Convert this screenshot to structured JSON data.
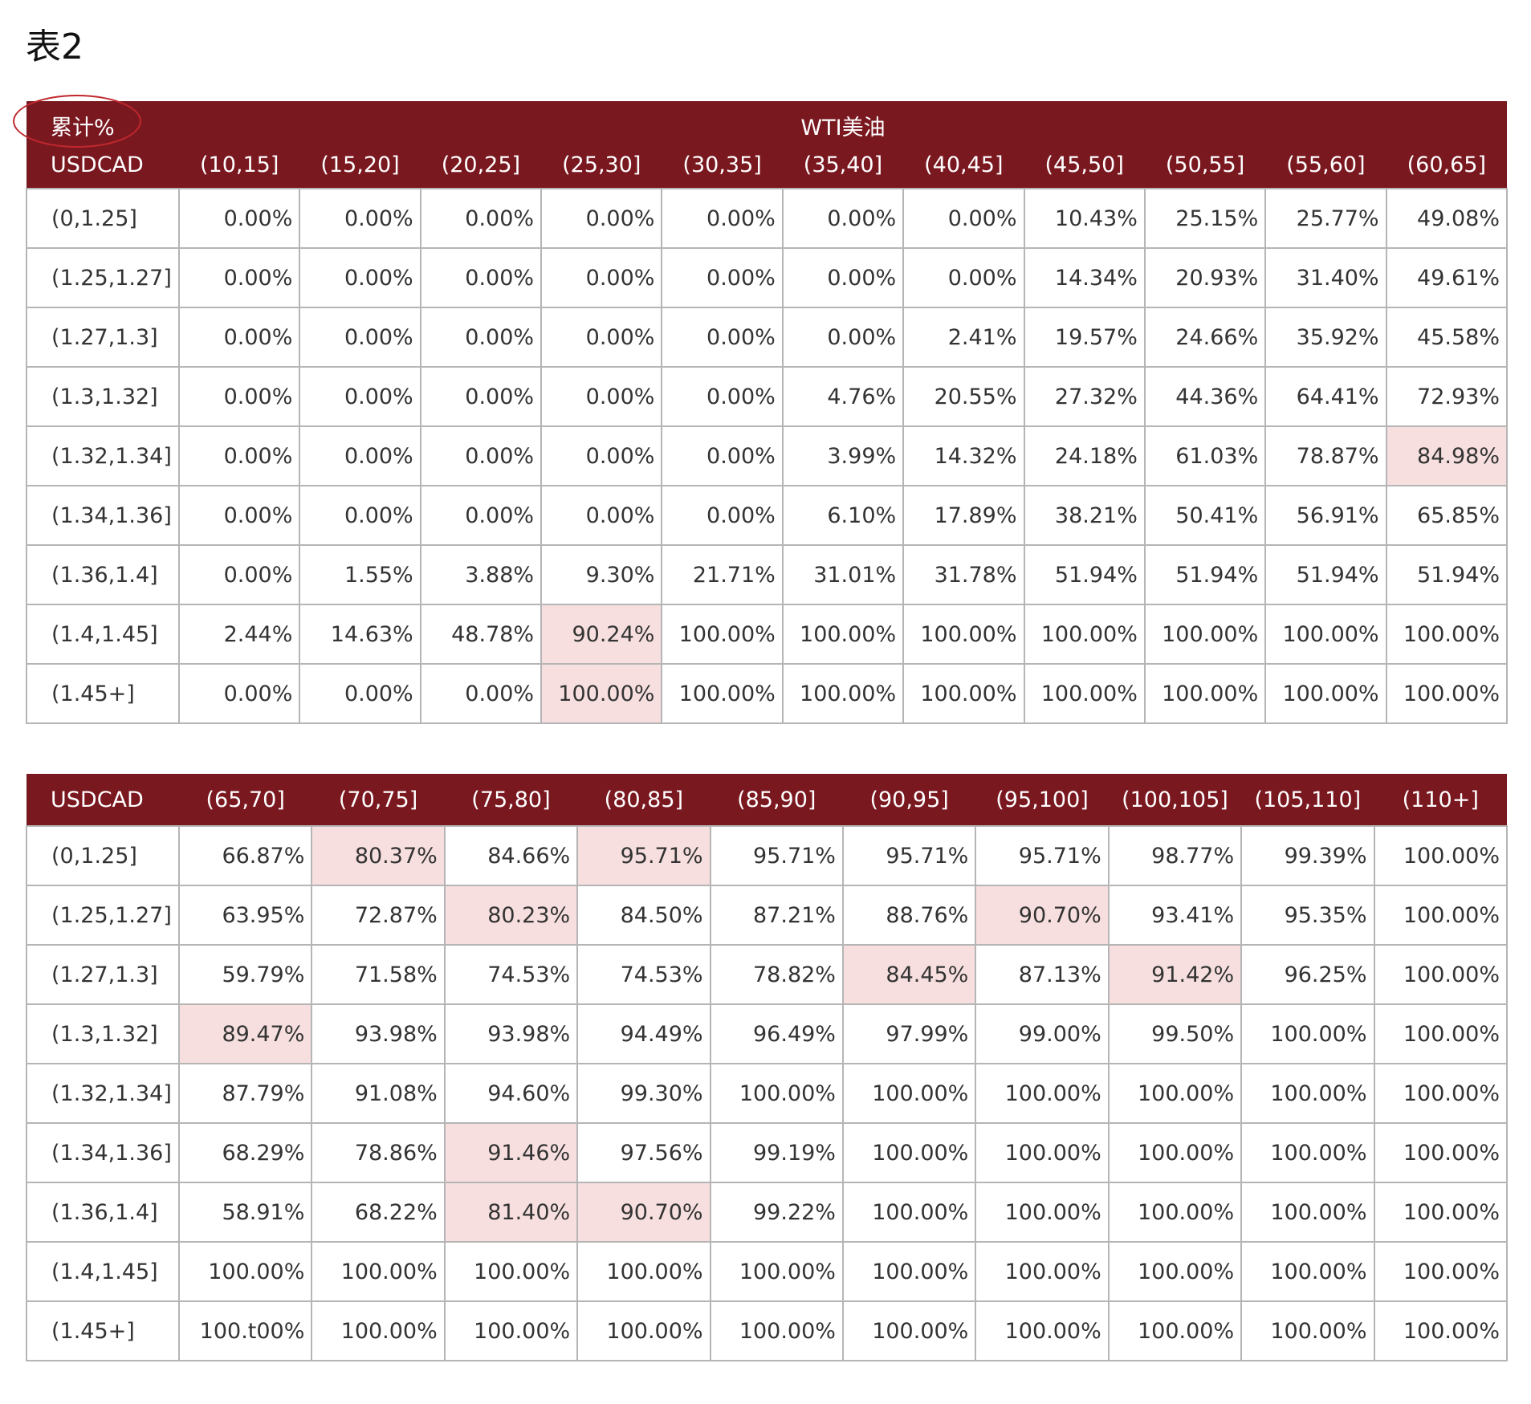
{
  "title": "表2",
  "table1": {
    "corner_label": "累计%",
    "group_label": "WTI美油",
    "row_header_label": "USDCAD",
    "columns": [
      "(10,15]",
      "(15,20]",
      "(20,25]",
      "(25,30]",
      "(30,35]",
      "(35,40]",
      "(40,45]",
      "(45,50]",
      "(50,55]",
      "(55,60]",
      "(60,65]"
    ],
    "rows": [
      {
        "label": "(0,1.25]",
        "cells": [
          "0.00%",
          "0.00%",
          "0.00%",
          "0.00%",
          "0.00%",
          "0.00%",
          "0.00%",
          "10.43%",
          "25.15%",
          "25.77%",
          "49.08%"
        ]
      },
      {
        "label": "(1.25,1.27]",
        "cells": [
          "0.00%",
          "0.00%",
          "0.00%",
          "0.00%",
          "0.00%",
          "0.00%",
          "0.00%",
          "14.34%",
          "20.93%",
          "31.40%",
          "49.61%"
        ]
      },
      {
        "label": "(1.27,1.3]",
        "cells": [
          "0.00%",
          "0.00%",
          "0.00%",
          "0.00%",
          "0.00%",
          "0.00%",
          "2.41%",
          "19.57%",
          "24.66%",
          "35.92%",
          "45.58%"
        ]
      },
      {
        "label": "(1.3,1.32]",
        "cells": [
          "0.00%",
          "0.00%",
          "0.00%",
          "0.00%",
          "0.00%",
          "4.76%",
          "20.55%",
          "27.32%",
          "44.36%",
          "64.41%",
          "72.93%"
        ]
      },
      {
        "label": "(1.32,1.34]",
        "cells": [
          "0.00%",
          "0.00%",
          "0.00%",
          "0.00%",
          "0.00%",
          "3.99%",
          "14.32%",
          "24.18%",
          "61.03%",
          "78.87%",
          "84.98%"
        ]
      },
      {
        "label": "(1.34,1.36]",
        "cells": [
          "0.00%",
          "0.00%",
          "0.00%",
          "0.00%",
          "0.00%",
          "6.10%",
          "17.89%",
          "38.21%",
          "50.41%",
          "56.91%",
          "65.85%"
        ]
      },
      {
        "label": "(1.36,1.4]",
        "cells": [
          "0.00%",
          "1.55%",
          "3.88%",
          "9.30%",
          "21.71%",
          "31.01%",
          "31.78%",
          "51.94%",
          "51.94%",
          "51.94%",
          "51.94%"
        ]
      },
      {
        "label": "(1.4,1.45]",
        "cells": [
          "2.44%",
          "14.63%",
          "48.78%",
          "90.24%",
          "100.00%",
          "100.00%",
          "100.00%",
          "100.00%",
          "100.00%",
          "100.00%",
          "100.00%"
        ]
      },
      {
        "label": "(1.45+]",
        "cells": [
          "0.00%",
          "0.00%",
          "0.00%",
          "100.00%",
          "100.00%",
          "100.00%",
          "100.00%",
          "100.00%",
          "100.00%",
          "100.00%",
          "100.00%"
        ]
      }
    ],
    "highlights": [
      [
        4,
        10
      ],
      [
        7,
        3
      ],
      [
        8,
        3
      ]
    ]
  },
  "table2": {
    "row_header_label": "USDCAD",
    "columns": [
      "(65,70]",
      "(70,75]",
      "(75,80]",
      "(80,85]",
      "(85,90]",
      "(90,95]",
      "(95,100]",
      "(100,105]",
      "(105,110]",
      "(110+]"
    ],
    "rows": [
      {
        "label": "(0,1.25]",
        "cells": [
          "66.87%",
          "80.37%",
          "84.66%",
          "95.71%",
          "95.71%",
          "95.71%",
          "95.71%",
          "98.77%",
          "99.39%",
          "100.00%"
        ]
      },
      {
        "label": "(1.25,1.27]",
        "cells": [
          "63.95%",
          "72.87%",
          "80.23%",
          "84.50%",
          "87.21%",
          "88.76%",
          "90.70%",
          "93.41%",
          "95.35%",
          "100.00%"
        ]
      },
      {
        "label": "(1.27,1.3]",
        "cells": [
          "59.79%",
          "71.58%",
          "74.53%",
          "74.53%",
          "78.82%",
          "84.45%",
          "87.13%",
          "91.42%",
          "96.25%",
          "100.00%"
        ]
      },
      {
        "label": "(1.3,1.32]",
        "cells": [
          "89.47%",
          "93.98%",
          "93.98%",
          "94.49%",
          "96.49%",
          "97.99%",
          "99.00%",
          "99.50%",
          "100.00%",
          "100.00%"
        ]
      },
      {
        "label": "(1.32,1.34]",
        "cells": [
          "87.79%",
          "91.08%",
          "94.60%",
          "99.30%",
          "100.00%",
          "100.00%",
          "100.00%",
          "100.00%",
          "100.00%",
          "100.00%"
        ]
      },
      {
        "label": "(1.34,1.36]",
        "cells": [
          "68.29%",
          "78.86%",
          "91.46%",
          "97.56%",
          "99.19%",
          "100.00%",
          "100.00%",
          "100.00%",
          "100.00%",
          "100.00%"
        ]
      },
      {
        "label": "(1.36,1.4]",
        "cells": [
          "58.91%",
          "68.22%",
          "81.40%",
          "90.70%",
          "99.22%",
          "100.00%",
          "100.00%",
          "100.00%",
          "100.00%",
          "100.00%"
        ]
      },
      {
        "label": "(1.4,1.45]",
        "cells": [
          "100.00%",
          "100.00%",
          "100.00%",
          "100.00%",
          "100.00%",
          "100.00%",
          "100.00%",
          "100.00%",
          "100.00%",
          "100.00%"
        ]
      },
      {
        "label": "(1.45+]",
        "cells": [
          "100.t00%",
          "100.00%",
          "100.00%",
          "100.00%",
          "100.00%",
          "100.00%",
          "100.00%",
          "100.00%",
          "100.00%",
          "100.00%"
        ]
      }
    ],
    "highlights": [
      [
        0,
        1
      ],
      [
        0,
        3
      ],
      [
        1,
        2
      ],
      [
        1,
        6
      ],
      [
        2,
        5
      ],
      [
        2,
        7
      ],
      [
        3,
        0
      ],
      [
        5,
        2
      ],
      [
        6,
        2
      ],
      [
        6,
        3
      ]
    ]
  },
  "colors": {
    "header_bg": "#7a1820",
    "header_text": "#ffffff",
    "highlight_bg": "#f7dfdf",
    "grid": "#b5b5b5",
    "annotation_circle": "#c0282d"
  }
}
